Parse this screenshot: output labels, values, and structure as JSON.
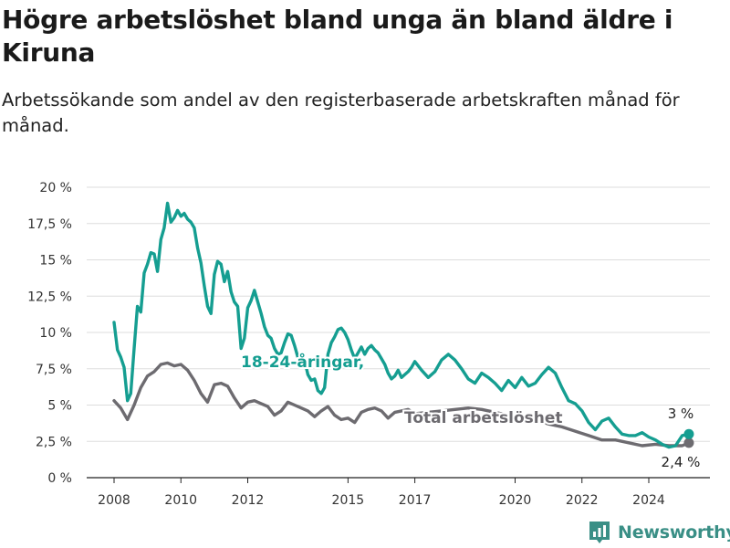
{
  "title": "Högre arbetslöshet bland unga än bland äldre i Kiruna",
  "subtitle": "Arbetssökande som andel av den registerbaserade arbetskraften månad för månad.",
  "brand": {
    "name": "Newsworthy",
    "icon": "bar-chart-logo-icon",
    "color": "#3a8f86"
  },
  "colors": {
    "youth": "#159e91",
    "total": "#6d6b70",
    "grid": "#dddddd",
    "axis": "#222222"
  },
  "chart_data": {
    "type": "line",
    "xlim": [
      2008,
      2025.6
    ],
    "ylim": [
      0,
      20
    ],
    "y_ticks": [
      0,
      2.5,
      5,
      7.5,
      10,
      12.5,
      15,
      17.5,
      20
    ],
    "y_tick_labels": [
      "0 %",
      "2,5 %",
      "5 %",
      "7,5 %",
      "10 %",
      "12,5 %",
      "15 %",
      "17,5 %",
      "20 %"
    ],
    "x_ticks": [
      2008,
      2010,
      2012,
      2015,
      2017,
      2020,
      2022,
      2024
    ],
    "x_tick_labels": [
      "2008",
      "2010",
      "2012",
      "2015",
      "2017",
      "2020",
      "2022",
      "2024"
    ],
    "grid": true,
    "series": [
      {
        "name": "18-24-åringar,",
        "key": "youth",
        "end_label": "3 %",
        "x": [
          2008.0,
          2008.1,
          2008.2,
          2008.3,
          2008.4,
          2008.5,
          2008.6,
          2008.7,
          2008.8,
          2008.9,
          2009.0,
          2009.1,
          2009.2,
          2009.3,
          2009.4,
          2009.5,
          2009.6,
          2009.7,
          2009.8,
          2009.9,
          2010.0,
          2010.1,
          2010.2,
          2010.3,
          2010.4,
          2010.5,
          2010.6,
          2010.7,
          2010.8,
          2010.9,
          2011.0,
          2011.1,
          2011.2,
          2011.3,
          2011.4,
          2011.5,
          2011.6,
          2011.7,
          2011.8,
          2011.9,
          2012.0,
          2012.1,
          2012.2,
          2012.3,
          2012.4,
          2012.5,
          2012.6,
          2012.7,
          2012.8,
          2012.9,
          2013.0,
          2013.1,
          2013.2,
          2013.3,
          2013.4,
          2013.5,
          2013.6,
          2013.7,
          2013.8,
          2013.9,
          2014.0,
          2014.1,
          2014.2,
          2014.3,
          2014.4,
          2014.5,
          2014.6,
          2014.7,
          2014.8,
          2014.9,
          2015.0,
          2015.1,
          2015.2,
          2015.3,
          2015.4,
          2015.5,
          2015.6,
          2015.7,
          2015.8,
          2015.9,
          2016.0,
          2016.1,
          2016.2,
          2016.3,
          2016.4,
          2016.5,
          2016.6,
          2016.7,
          2016.8,
          2016.9,
          2017.0,
          2017.2,
          2017.4,
          2017.6,
          2017.8,
          2018.0,
          2018.2,
          2018.4,
          2018.6,
          2018.8,
          2019.0,
          2019.2,
          2019.4,
          2019.6,
          2019.8,
          2020.0,
          2020.2,
          2020.4,
          2020.6,
          2020.8,
          2021.0,
          2021.2,
          2021.4,
          2021.6,
          2021.8,
          2022.0,
          2022.2,
          2022.4,
          2022.6,
          2022.8,
          2023.0,
          2023.2,
          2023.4,
          2023.6,
          2023.8,
          2024.0,
          2024.2,
          2024.4,
          2024.6,
          2024.8,
          2025.0,
          2025.2
        ],
        "values": [
          10.7,
          8.8,
          8.3,
          7.6,
          5.3,
          5.8,
          8.9,
          11.8,
          11.4,
          14.1,
          14.7,
          15.5,
          15.4,
          14.2,
          16.4,
          17.2,
          18.9,
          17.6,
          17.9,
          18.4,
          18.0,
          18.2,
          17.8,
          17.6,
          17.2,
          15.8,
          14.8,
          13.2,
          11.8,
          11.3,
          14.0,
          14.9,
          14.7,
          13.5,
          14.2,
          12.8,
          12.1,
          11.8,
          8.9,
          9.6,
          11.7,
          12.2,
          12.9,
          12.1,
          11.3,
          10.4,
          9.8,
          9.6,
          8.9,
          8.5,
          8.6,
          9.3,
          9.9,
          9.8,
          9.1,
          8.3,
          7.9,
          8.1,
          7.1,
          6.7,
          6.8,
          6.0,
          5.8,
          6.2,
          8.5,
          9.3,
          9.7,
          10.2,
          10.3,
          10.0,
          9.5,
          8.8,
          8.2,
          8.6,
          9.0,
          8.5,
          8.9,
          9.1,
          8.8,
          8.6,
          8.2,
          7.8,
          7.2,
          6.8,
          7.0,
          7.4,
          6.9,
          7.1,
          7.3,
          7.6,
          8.0,
          7.4,
          6.9,
          7.3,
          8.1,
          8.5,
          8.1,
          7.5,
          6.8,
          6.5,
          7.2,
          6.9,
          6.5,
          6.0,
          6.7,
          6.2,
          6.9,
          6.3,
          6.5,
          7.1,
          7.6,
          7.2,
          6.2,
          5.3,
          5.1,
          4.6,
          3.8,
          3.3,
          3.9,
          4.1,
          3.5,
          3.0,
          2.9,
          2.9,
          3.1,
          2.8,
          2.6,
          2.3,
          2.1,
          2.2,
          2.9,
          3.0
        ]
      },
      {
        "name": "Total arbetslöshet",
        "key": "total",
        "end_label": "2,4 %",
        "x": [
          2008.0,
          2008.2,
          2008.4,
          2008.6,
          2008.8,
          2009.0,
          2009.2,
          2009.4,
          2009.6,
          2009.8,
          2010.0,
          2010.2,
          2010.4,
          2010.6,
          2010.8,
          2011.0,
          2011.2,
          2011.4,
          2011.6,
          2011.8,
          2012.0,
          2012.2,
          2012.4,
          2012.6,
          2012.8,
          2013.0,
          2013.2,
          2013.4,
          2013.6,
          2013.8,
          2014.0,
          2014.2,
          2014.4,
          2014.6,
          2014.8,
          2015.0,
          2015.2,
          2015.4,
          2015.6,
          2015.8,
          2016.0,
          2016.2,
          2016.4,
          2016.6,
          2016.8,
          2017.0,
          2017.4,
          2017.8,
          2018.2,
          2018.6,
          2019.0,
          2019.4,
          2019.8,
          2020.2,
          2020.6,
          2021.0,
          2021.4,
          2021.8,
          2022.2,
          2022.6,
          2023.0,
          2023.4,
          2023.8,
          2024.2,
          2024.6,
          2025.0,
          2025.2
        ],
        "values": [
          5.3,
          4.8,
          4.0,
          5.0,
          6.2,
          7.0,
          7.3,
          7.8,
          7.9,
          7.7,
          7.8,
          7.4,
          6.7,
          5.8,
          5.2,
          6.4,
          6.5,
          6.3,
          5.5,
          4.8,
          5.2,
          5.3,
          5.1,
          4.9,
          4.3,
          4.6,
          5.2,
          5.0,
          4.8,
          4.6,
          4.2,
          4.6,
          4.9,
          4.3,
          4.0,
          4.1,
          3.8,
          4.5,
          4.7,
          4.8,
          4.6,
          4.1,
          4.5,
          4.6,
          4.7,
          4.4,
          4.5,
          4.6,
          4.7,
          4.8,
          4.7,
          4.5,
          4.3,
          4.2,
          4.0,
          3.7,
          3.5,
          3.2,
          2.9,
          2.6,
          2.6,
          2.4,
          2.2,
          2.3,
          2.2,
          2.2,
          2.4
        ]
      }
    ]
  }
}
